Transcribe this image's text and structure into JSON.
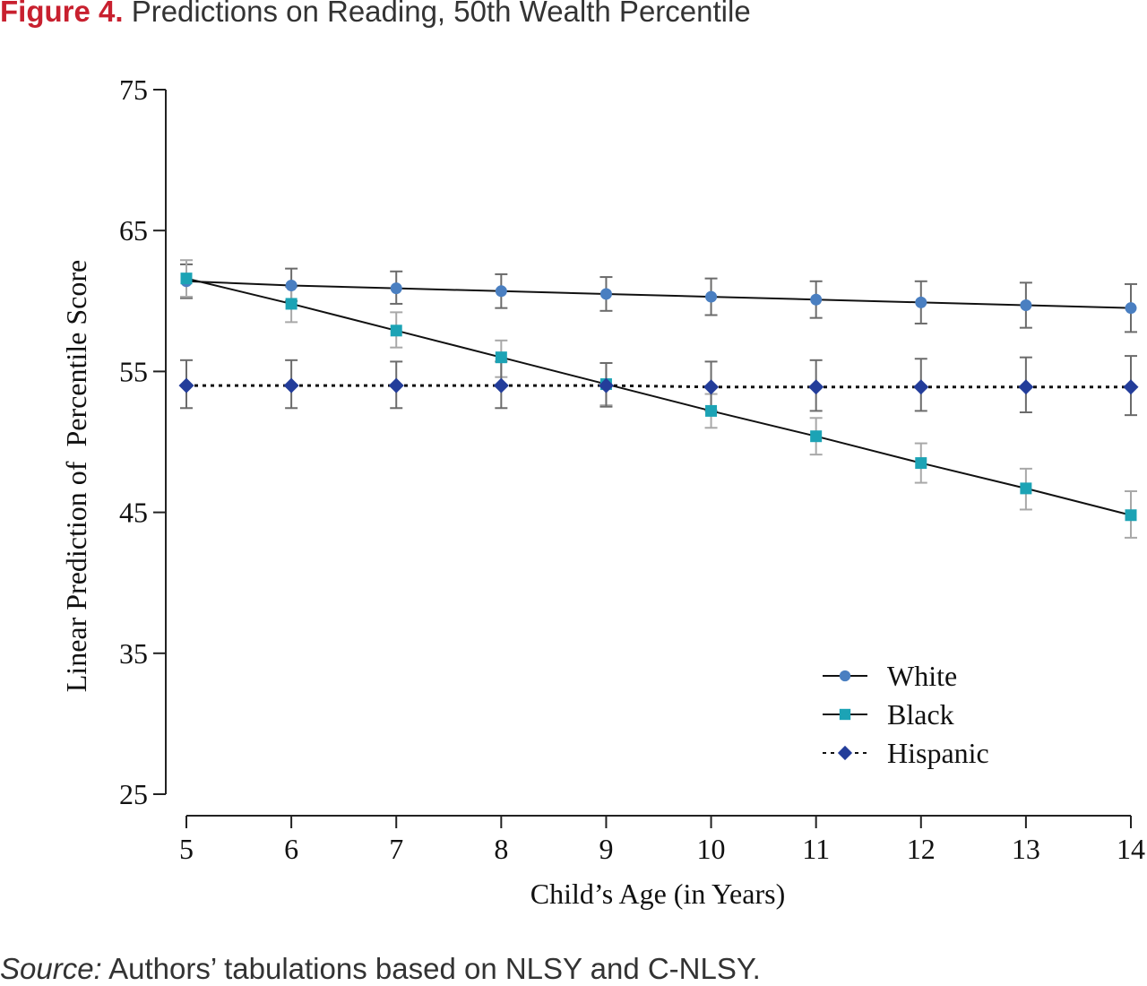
{
  "figure": {
    "label": "Figure 4.",
    "title": "Predictions on Reading, 50th Wealth Percentile"
  },
  "source": {
    "label": "Source:",
    "text": "Authors’ tabulations based on NLSY and C-NLSY."
  },
  "chart_data": {
    "type": "line",
    "xlabel": "Child’s Age (in Years)",
    "ylabel": "Linear Prediction of  Percentile Score",
    "x": [
      5,
      6,
      7,
      8,
      9,
      10,
      11,
      12,
      13,
      14
    ],
    "xlim": [
      5,
      14
    ],
    "ylim": [
      25,
      75
    ],
    "yticks": [
      25,
      35,
      45,
      55,
      65,
      75
    ],
    "grid": false,
    "legend_position": "bottom-right",
    "series": [
      {
        "name": "White",
        "marker": "circle",
        "line_style": "solid",
        "color": "#4a7fc1",
        "values": [
          61.4,
          61.1,
          60.9,
          60.7,
          60.5,
          60.3,
          60.1,
          59.9,
          59.7,
          59.5
        ],
        "ci_low": [
          60.2,
          60.0,
          59.8,
          59.5,
          59.3,
          59.0,
          58.8,
          58.4,
          58.1,
          57.8
        ],
        "ci_high": [
          62.6,
          62.3,
          62.1,
          61.9,
          61.7,
          61.6,
          61.4,
          61.4,
          61.3,
          61.2
        ]
      },
      {
        "name": "Black",
        "marker": "square",
        "line_style": "solid",
        "color": "#1ca3b5",
        "values": [
          61.6,
          59.8,
          57.9,
          56.0,
          54.1,
          52.2,
          50.4,
          48.5,
          46.7,
          44.8
        ],
        "ci_low": [
          60.3,
          58.5,
          56.7,
          54.6,
          52.6,
          51.0,
          49.1,
          47.1,
          45.2,
          43.2
        ],
        "ci_high": [
          62.9,
          61.0,
          59.2,
          57.2,
          55.6,
          53.4,
          51.7,
          49.9,
          48.1,
          46.5
        ]
      },
      {
        "name": "Hispanic",
        "marker": "diamond",
        "line_style": "dotted",
        "color": "#233d9a",
        "values": [
          54.0,
          54.0,
          54.0,
          54.0,
          54.0,
          53.9,
          53.9,
          53.9,
          53.9,
          53.9
        ],
        "ci_low": [
          52.4,
          52.4,
          52.4,
          52.4,
          52.5,
          52.2,
          52.2,
          52.2,
          52.1,
          51.9
        ],
        "ci_high": [
          55.8,
          55.8,
          55.7,
          55.7,
          55.6,
          55.7,
          55.8,
          55.9,
          56.0,
          56.1
        ]
      }
    ]
  }
}
